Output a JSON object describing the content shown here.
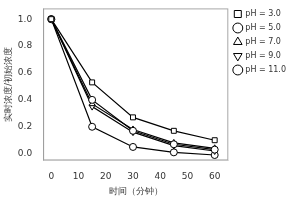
{
  "chart_data": {
    "type": "line",
    "xlabel": "时间（分钟）",
    "ylabel": "实时浓度/初始浓度",
    "xlim": [
      -3,
      65
    ],
    "ylim": [
      -0.05,
      1.08
    ],
    "xticks": [
      0,
      10,
      20,
      30,
      40,
      50,
      60
    ],
    "yticks": [
      {
        "value": 0.0,
        "label": "0.0"
      },
      {
        "value": 0.2,
        "label": "0.2"
      },
      {
        "value": 0.4,
        "label": "0.4"
      },
      {
        "value": 0.6,
        "label": "0.6"
      },
      {
        "value": 0.8,
        "label": "0.8"
      },
      {
        "value": 1.0,
        "label": "1.0"
      }
    ],
    "x": [
      0,
      15,
      30,
      45,
      60
    ],
    "color": "black",
    "grid": false,
    "legend": "upper right",
    "series": [
      {
        "name": "pH = 3.0",
        "marker": "square",
        "values": [
          1.0,
          0.53,
          0.27,
          0.17,
          0.1
        ]
      },
      {
        "name": "pH = 5.0",
        "marker": "circle",
        "values": [
          1.0,
          0.4,
          0.17,
          0.07,
          0.03
        ]
      },
      {
        "name": "pH = 7.0",
        "marker": "triangle-up",
        "values": [
          1.0,
          0.37,
          0.18,
          0.08,
          0.04
        ]
      },
      {
        "name": "pH = 9.0",
        "marker": "triangle-down",
        "values": [
          1.0,
          0.35,
          0.16,
          0.06,
          0.02
        ]
      },
      {
        "name": "pH = 11.0",
        "marker": "circle",
        "values": [
          1.0,
          0.2,
          0.05,
          0.01,
          -0.01
        ]
      }
    ]
  }
}
